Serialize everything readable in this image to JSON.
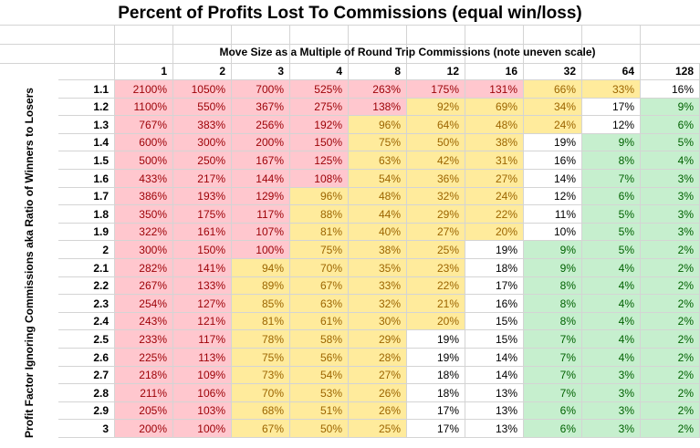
{
  "title": "Percent of Profits Lost To Commissions (equal win/loss)",
  "subtitle": "Move Size as a Multiple of Round Trip Commissions (note uneven scale)",
  "row_axis_label": "Profit Factor Ignoring Commissions aka Ratio of Winners to Losers",
  "column_headers": [
    "1",
    "2",
    "3",
    "4",
    "8",
    "12",
    "16",
    "32",
    "64",
    "128"
  ],
  "colors": {
    "red_fill": "#ffc7ce",
    "red_text": "#9c0006",
    "yellow_fill": "#ffeb9c",
    "yellow_text": "#9c6500",
    "green_fill": "#c6efce",
    "green_text": "#006100",
    "gridline": "#d4d4d4"
  },
  "rows": [
    {
      "label": "1.1",
      "cells": [
        {
          "v": "2100%",
          "c": "red"
        },
        {
          "v": "1050%",
          "c": "red"
        },
        {
          "v": "700%",
          "c": "red"
        },
        {
          "v": "525%",
          "c": "red"
        },
        {
          "v": "263%",
          "c": "red"
        },
        {
          "v": "175%",
          "c": "red"
        },
        {
          "v": "131%",
          "c": "red"
        },
        {
          "v": "66%",
          "c": "yel"
        },
        {
          "v": "33%",
          "c": "yel"
        },
        {
          "v": "16%",
          "c": "wht"
        }
      ]
    },
    {
      "label": "1.2",
      "cells": [
        {
          "v": "1100%",
          "c": "red"
        },
        {
          "v": "550%",
          "c": "red"
        },
        {
          "v": "367%",
          "c": "red"
        },
        {
          "v": "275%",
          "c": "red"
        },
        {
          "v": "138%",
          "c": "red"
        },
        {
          "v": "92%",
          "c": "yel"
        },
        {
          "v": "69%",
          "c": "yel"
        },
        {
          "v": "34%",
          "c": "yel"
        },
        {
          "v": "17%",
          "c": "wht"
        },
        {
          "v": "9%",
          "c": "grn"
        }
      ]
    },
    {
      "label": "1.3",
      "cells": [
        {
          "v": "767%",
          "c": "red"
        },
        {
          "v": "383%",
          "c": "red"
        },
        {
          "v": "256%",
          "c": "red"
        },
        {
          "v": "192%",
          "c": "red"
        },
        {
          "v": "96%",
          "c": "yel"
        },
        {
          "v": "64%",
          "c": "yel"
        },
        {
          "v": "48%",
          "c": "yel"
        },
        {
          "v": "24%",
          "c": "yel"
        },
        {
          "v": "12%",
          "c": "wht"
        },
        {
          "v": "6%",
          "c": "grn"
        }
      ]
    },
    {
      "label": "1.4",
      "cells": [
        {
          "v": "600%",
          "c": "red"
        },
        {
          "v": "300%",
          "c": "red"
        },
        {
          "v": "200%",
          "c": "red"
        },
        {
          "v": "150%",
          "c": "red"
        },
        {
          "v": "75%",
          "c": "yel"
        },
        {
          "v": "50%",
          "c": "yel"
        },
        {
          "v": "38%",
          "c": "yel"
        },
        {
          "v": "19%",
          "c": "wht"
        },
        {
          "v": "9%",
          "c": "grn"
        },
        {
          "v": "5%",
          "c": "grn"
        }
      ]
    },
    {
      "label": "1.5",
      "cells": [
        {
          "v": "500%",
          "c": "red"
        },
        {
          "v": "250%",
          "c": "red"
        },
        {
          "v": "167%",
          "c": "red"
        },
        {
          "v": "125%",
          "c": "red"
        },
        {
          "v": "63%",
          "c": "yel"
        },
        {
          "v": "42%",
          "c": "yel"
        },
        {
          "v": "31%",
          "c": "yel"
        },
        {
          "v": "16%",
          "c": "wht"
        },
        {
          "v": "8%",
          "c": "grn"
        },
        {
          "v": "4%",
          "c": "grn"
        }
      ]
    },
    {
      "label": "1.6",
      "cells": [
        {
          "v": "433%",
          "c": "red"
        },
        {
          "v": "217%",
          "c": "red"
        },
        {
          "v": "144%",
          "c": "red"
        },
        {
          "v": "108%",
          "c": "red"
        },
        {
          "v": "54%",
          "c": "yel"
        },
        {
          "v": "36%",
          "c": "yel"
        },
        {
          "v": "27%",
          "c": "yel"
        },
        {
          "v": "14%",
          "c": "wht"
        },
        {
          "v": "7%",
          "c": "grn"
        },
        {
          "v": "3%",
          "c": "grn"
        }
      ]
    },
    {
      "label": "1.7",
      "cells": [
        {
          "v": "386%",
          "c": "red"
        },
        {
          "v": "193%",
          "c": "red"
        },
        {
          "v": "129%",
          "c": "red"
        },
        {
          "v": "96%",
          "c": "yel"
        },
        {
          "v": "48%",
          "c": "yel"
        },
        {
          "v": "32%",
          "c": "yel"
        },
        {
          "v": "24%",
          "c": "yel"
        },
        {
          "v": "12%",
          "c": "wht"
        },
        {
          "v": "6%",
          "c": "grn"
        },
        {
          "v": "3%",
          "c": "grn"
        }
      ]
    },
    {
      "label": "1.8",
      "cells": [
        {
          "v": "350%",
          "c": "red"
        },
        {
          "v": "175%",
          "c": "red"
        },
        {
          "v": "117%",
          "c": "red"
        },
        {
          "v": "88%",
          "c": "yel"
        },
        {
          "v": "44%",
          "c": "yel"
        },
        {
          "v": "29%",
          "c": "yel"
        },
        {
          "v": "22%",
          "c": "yel"
        },
        {
          "v": "11%",
          "c": "wht"
        },
        {
          "v": "5%",
          "c": "grn"
        },
        {
          "v": "3%",
          "c": "grn"
        }
      ]
    },
    {
      "label": "1.9",
      "cells": [
        {
          "v": "322%",
          "c": "red"
        },
        {
          "v": "161%",
          "c": "red"
        },
        {
          "v": "107%",
          "c": "red"
        },
        {
          "v": "81%",
          "c": "yel"
        },
        {
          "v": "40%",
          "c": "yel"
        },
        {
          "v": "27%",
          "c": "yel"
        },
        {
          "v": "20%",
          "c": "yel"
        },
        {
          "v": "10%",
          "c": "wht"
        },
        {
          "v": "5%",
          "c": "grn"
        },
        {
          "v": "3%",
          "c": "grn"
        }
      ]
    },
    {
      "label": "2",
      "cells": [
        {
          "v": "300%",
          "c": "red"
        },
        {
          "v": "150%",
          "c": "red"
        },
        {
          "v": "100%",
          "c": "red"
        },
        {
          "v": "75%",
          "c": "yel"
        },
        {
          "v": "38%",
          "c": "yel"
        },
        {
          "v": "25%",
          "c": "yel"
        },
        {
          "v": "19%",
          "c": "wht"
        },
        {
          "v": "9%",
          "c": "grn"
        },
        {
          "v": "5%",
          "c": "grn"
        },
        {
          "v": "2%",
          "c": "grn"
        }
      ]
    },
    {
      "label": "2.1",
      "cells": [
        {
          "v": "282%",
          "c": "red"
        },
        {
          "v": "141%",
          "c": "red"
        },
        {
          "v": "94%",
          "c": "yel"
        },
        {
          "v": "70%",
          "c": "yel"
        },
        {
          "v": "35%",
          "c": "yel"
        },
        {
          "v": "23%",
          "c": "yel"
        },
        {
          "v": "18%",
          "c": "wht"
        },
        {
          "v": "9%",
          "c": "grn"
        },
        {
          "v": "4%",
          "c": "grn"
        },
        {
          "v": "2%",
          "c": "grn"
        }
      ]
    },
    {
      "label": "2.2",
      "cells": [
        {
          "v": "267%",
          "c": "red"
        },
        {
          "v": "133%",
          "c": "red"
        },
        {
          "v": "89%",
          "c": "yel"
        },
        {
          "v": "67%",
          "c": "yel"
        },
        {
          "v": "33%",
          "c": "yel"
        },
        {
          "v": "22%",
          "c": "yel"
        },
        {
          "v": "17%",
          "c": "wht"
        },
        {
          "v": "8%",
          "c": "grn"
        },
        {
          "v": "4%",
          "c": "grn"
        },
        {
          "v": "2%",
          "c": "grn"
        }
      ]
    },
    {
      "label": "2.3",
      "cells": [
        {
          "v": "254%",
          "c": "red"
        },
        {
          "v": "127%",
          "c": "red"
        },
        {
          "v": "85%",
          "c": "yel"
        },
        {
          "v": "63%",
          "c": "yel"
        },
        {
          "v": "32%",
          "c": "yel"
        },
        {
          "v": "21%",
          "c": "yel"
        },
        {
          "v": "16%",
          "c": "wht"
        },
        {
          "v": "8%",
          "c": "grn"
        },
        {
          "v": "4%",
          "c": "grn"
        },
        {
          "v": "2%",
          "c": "grn"
        }
      ]
    },
    {
      "label": "2.4",
      "cells": [
        {
          "v": "243%",
          "c": "red"
        },
        {
          "v": "121%",
          "c": "red"
        },
        {
          "v": "81%",
          "c": "yel"
        },
        {
          "v": "61%",
          "c": "yel"
        },
        {
          "v": "30%",
          "c": "yel"
        },
        {
          "v": "20%",
          "c": "yel"
        },
        {
          "v": "15%",
          "c": "wht"
        },
        {
          "v": "8%",
          "c": "grn"
        },
        {
          "v": "4%",
          "c": "grn"
        },
        {
          "v": "2%",
          "c": "grn"
        }
      ]
    },
    {
      "label": "2.5",
      "cells": [
        {
          "v": "233%",
          "c": "red"
        },
        {
          "v": "117%",
          "c": "red"
        },
        {
          "v": "78%",
          "c": "yel"
        },
        {
          "v": "58%",
          "c": "yel"
        },
        {
          "v": "29%",
          "c": "yel"
        },
        {
          "v": "19%",
          "c": "wht"
        },
        {
          "v": "15%",
          "c": "wht"
        },
        {
          "v": "7%",
          "c": "grn"
        },
        {
          "v": "4%",
          "c": "grn"
        },
        {
          "v": "2%",
          "c": "grn"
        }
      ]
    },
    {
      "label": "2.6",
      "cells": [
        {
          "v": "225%",
          "c": "red"
        },
        {
          "v": "113%",
          "c": "red"
        },
        {
          "v": "75%",
          "c": "yel"
        },
        {
          "v": "56%",
          "c": "yel"
        },
        {
          "v": "28%",
          "c": "yel"
        },
        {
          "v": "19%",
          "c": "wht"
        },
        {
          "v": "14%",
          "c": "wht"
        },
        {
          "v": "7%",
          "c": "grn"
        },
        {
          "v": "4%",
          "c": "grn"
        },
        {
          "v": "2%",
          "c": "grn"
        }
      ]
    },
    {
      "label": "2.7",
      "cells": [
        {
          "v": "218%",
          "c": "red"
        },
        {
          "v": "109%",
          "c": "red"
        },
        {
          "v": "73%",
          "c": "yel"
        },
        {
          "v": "54%",
          "c": "yel"
        },
        {
          "v": "27%",
          "c": "yel"
        },
        {
          "v": "18%",
          "c": "wht"
        },
        {
          "v": "14%",
          "c": "wht"
        },
        {
          "v": "7%",
          "c": "grn"
        },
        {
          "v": "3%",
          "c": "grn"
        },
        {
          "v": "2%",
          "c": "grn"
        }
      ]
    },
    {
      "label": "2.8",
      "cells": [
        {
          "v": "211%",
          "c": "red"
        },
        {
          "v": "106%",
          "c": "red"
        },
        {
          "v": "70%",
          "c": "yel"
        },
        {
          "v": "53%",
          "c": "yel"
        },
        {
          "v": "26%",
          "c": "yel"
        },
        {
          "v": "18%",
          "c": "wht"
        },
        {
          "v": "13%",
          "c": "wht"
        },
        {
          "v": "7%",
          "c": "grn"
        },
        {
          "v": "3%",
          "c": "grn"
        },
        {
          "v": "2%",
          "c": "grn"
        }
      ]
    },
    {
      "label": "2.9",
      "cells": [
        {
          "v": "205%",
          "c": "red"
        },
        {
          "v": "103%",
          "c": "red"
        },
        {
          "v": "68%",
          "c": "yel"
        },
        {
          "v": "51%",
          "c": "yel"
        },
        {
          "v": "26%",
          "c": "yel"
        },
        {
          "v": "17%",
          "c": "wht"
        },
        {
          "v": "13%",
          "c": "wht"
        },
        {
          "v": "6%",
          "c": "grn"
        },
        {
          "v": "3%",
          "c": "grn"
        },
        {
          "v": "2%",
          "c": "grn"
        }
      ]
    },
    {
      "label": "3",
      "cells": [
        {
          "v": "200%",
          "c": "red"
        },
        {
          "v": "100%",
          "c": "red"
        },
        {
          "v": "67%",
          "c": "yel"
        },
        {
          "v": "50%",
          "c": "yel"
        },
        {
          "v": "25%",
          "c": "yel"
        },
        {
          "v": "17%",
          "c": "wht"
        },
        {
          "v": "13%",
          "c": "wht"
        },
        {
          "v": "6%",
          "c": "grn"
        },
        {
          "v": "3%",
          "c": "grn"
        },
        {
          "v": "2%",
          "c": "grn"
        }
      ]
    }
  ]
}
